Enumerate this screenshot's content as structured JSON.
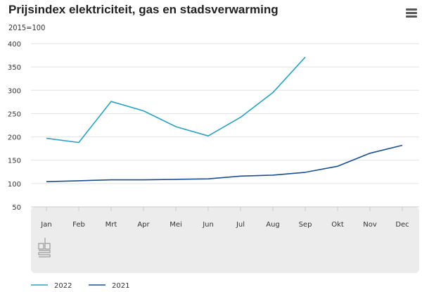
{
  "menu_icon": "hamburger-menu-icon",
  "logo": "cbs",
  "chart_data": {
    "type": "line",
    "title": "Prijsindex elektriciteit, gas en stadsverwarming",
    "subtitle": "2015=100",
    "xlabel": "",
    "ylabel": "2015=100",
    "categories": [
      "Jan",
      "Feb",
      "Mrt",
      "Apr",
      "Mei",
      "Jun",
      "Jul",
      "Aug",
      "Sep",
      "Okt",
      "Nov",
      "Dec"
    ],
    "yticks": [
      50,
      100,
      150,
      200,
      250,
      300,
      350,
      400
    ],
    "ylim": [
      50,
      400
    ],
    "grid": true,
    "legend_position": "bottom-left",
    "series": [
      {
        "name": "2022",
        "color": "#2aa1c0",
        "values": [
          197,
          188,
          276,
          256,
          222,
          202,
          242,
          295,
          371,
          null,
          null,
          null
        ]
      },
      {
        "name": "2021",
        "color": "#1a4f8f",
        "values": [
          104,
          106,
          108,
          108,
          109,
          110,
          116,
          118,
          124,
          137,
          165,
          182
        ]
      }
    ]
  }
}
